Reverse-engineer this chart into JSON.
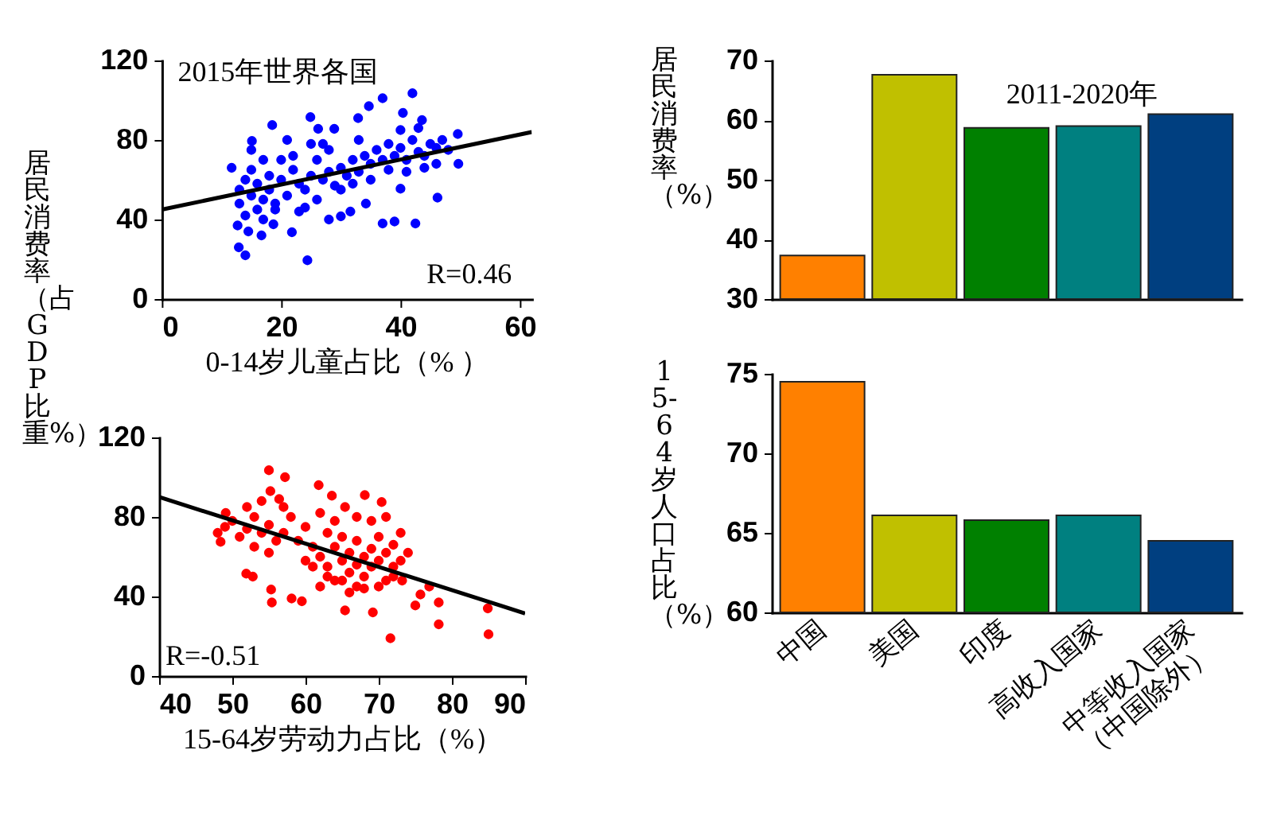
{
  "chart_data": [
    {
      "type": "scatter",
      "ylabel": "居民消费率（占GDP比重%）",
      "xlabel": "0-14岁儿童占比（% ）",
      "annotations": [
        "2015年世界各国",
        "R=0.46"
      ],
      "xlim": [
        0,
        62
      ],
      "xticks": [
        0,
        20,
        40,
        60
      ],
      "ylim": [
        0,
        120
      ],
      "yticks": [
        0,
        40,
        80,
        120
      ],
      "series": [
        {
          "type": "scatter",
          "color": "#0000ff",
          "marker": "circle",
          "x": [
            12.9,
            14,
            24.4,
            11.7,
            37,
            42,
            34.7,
            49.6,
            49.7,
            46.2,
            42.5,
            39,
            37,
            24.9,
            18.5,
            15.1,
            12.7,
            14.5,
            16.7,
            18.7,
            21.8,
            28.9,
            26.2,
            32.9,
            40.4,
            43.6,
            40,
            34.2,
            31.6,
            28,
            30,
            13,
            14,
            15,
            16,
            17,
            18,
            13,
            15,
            16,
            17,
            14,
            18,
            19,
            20,
            21,
            22,
            23,
            24,
            25,
            26,
            27,
            28,
            29,
            30,
            31,
            32,
            33,
            34,
            35,
            36,
            37,
            38,
            39,
            40,
            41,
            42,
            43,
            44,
            45,
            46,
            47,
            48,
            22,
            24,
            26,
            28,
            30,
            32,
            20,
            19,
            21,
            27,
            33,
            35,
            38,
            41,
            44,
            46,
            40,
            43,
            17,
            15,
            23,
            25
          ],
          "values": [
            26,
            22,
            19.5,
            66,
            101,
            103.5,
            97,
            83,
            68,
            51,
            38,
            39,
            38,
            91.5,
            87.5,
            79.5,
            37,
            34,
            32,
            37.6,
            33.6,
            85.6,
            85.6,
            91,
            93.6,
            90,
            55.5,
            48,
            44,
            40,
            41.6,
            55,
            60,
            52,
            58,
            50,
            62,
            48,
            65,
            45,
            70,
            42,
            55,
            48,
            60,
            52,
            65,
            58,
            55,
            62,
            70,
            60,
            64,
            57,
            66,
            62,
            70,
            64,
            72,
            68,
            75,
            70,
            78,
            72,
            76,
            70,
            80,
            74,
            72,
            78,
            76,
            80,
            75,
            72,
            46,
            50,
            75,
            55,
            58,
            70,
            45,
            80,
            78,
            80,
            60,
            65,
            64,
            66,
            68,
            85,
            86,
            40,
            75,
            44,
            78
          ]
        },
        {
          "type": "line",
          "color": "#000000",
          "x": [
            0,
            62
          ],
          "values": [
            45,
            84
          ]
        }
      ]
    },
    {
      "type": "scatter",
      "xlabel": "15-64岁劳动力占比（%）",
      "annotations": [
        "R=-0.51"
      ],
      "xlim": [
        40,
        90
      ],
      "xticks": [
        40,
        50,
        60,
        70,
        80,
        90
      ],
      "ylim": [
        0,
        120
      ],
      "yticks": [
        0,
        40,
        80,
        120
      ],
      "series": [
        {
          "type": "scatter",
          "color": "#ff0000",
          "marker": "circle",
          "x": [
            55,
            57.2,
            61.8,
            48.4,
            49.1,
            51.9,
            52.8,
            55.3,
            55.4,
            58.1,
            59.5,
            65.4,
            69.2,
            71.6,
            75,
            75.7,
            76.9,
            78.2,
            78.2,
            73.2,
            84.9,
            85,
            68.1,
            70.4,
            63.6,
            55.2,
            56.4,
            65.4,
            62,
            63,
            64,
            65,
            66,
            66,
            67,
            67,
            68,
            68,
            69,
            69,
            70,
            70,
            71,
            71,
            72,
            72,
            65,
            64,
            63,
            61,
            60,
            62,
            66,
            68,
            70,
            73,
            73,
            74,
            67,
            69,
            71,
            64,
            62,
            60,
            58,
            57,
            56,
            55,
            54,
            53,
            52,
            51,
            50,
            49,
            48,
            53,
            55,
            57,
            59,
            52,
            54,
            61,
            63,
            65,
            67,
            72
          ],
          "values": [
            103.5,
            100,
            96,
            67.5,
            82,
            51.5,
            50,
            43.5,
            37,
            39,
            37.6,
            33,
            32,
            19,
            35.5,
            41,
            45,
            37,
            26,
            48,
            34,
            21,
            91,
            87.5,
            90.7,
            93,
            89,
            85,
            60,
            55,
            65,
            58,
            52,
            62,
            56,
            68,
            60,
            50,
            64,
            55,
            58,
            70,
            62,
            48,
            55,
            66,
            70,
            48,
            72,
            65,
            58,
            45,
            42,
            44,
            45,
            58,
            72,
            62,
            80,
            78,
            80,
            78,
            82,
            75,
            80,
            72,
            68,
            76,
            72,
            80,
            74,
            70,
            78,
            75,
            72,
            65,
            62,
            85,
            68,
            85,
            88,
            55,
            50,
            48,
            45,
            50
          ]
        },
        {
          "type": "line",
          "color": "#000000",
          "x": [
            40,
            90
          ],
          "values": [
            90,
            31.5
          ]
        }
      ]
    },
    {
      "type": "bar",
      "ylabel": "居民消费率（%）",
      "annotations": [
        "2011-2020年"
      ],
      "categories": [
        null,
        null,
        null,
        null,
        null
      ],
      "values": [
        37.3,
        67.6,
        58.7,
        59.0,
        61.0
      ],
      "colors": [
        "#ff8000",
        "#c0c000",
        "#008000",
        "#008080",
        "#003f80"
      ],
      "ylim": [
        30,
        70
      ],
      "yticks": [
        30,
        40,
        50,
        60,
        70
      ]
    },
    {
      "type": "bar",
      "ylabel": "15-64岁人口占比（%）",
      "categories": [
        "中国",
        "美国",
        "印度",
        "高收入国家",
        "中等收入国家（中国除外）"
      ],
      "values": [
        74.5,
        66.1,
        65.8,
        66.1,
        64.5
      ],
      "colors": [
        "#ff8000",
        "#c0c000",
        "#008000",
        "#008080",
        "#003f80"
      ],
      "ylim": [
        60,
        75
      ],
      "yticks": [
        60,
        65,
        70,
        75
      ]
    }
  ]
}
